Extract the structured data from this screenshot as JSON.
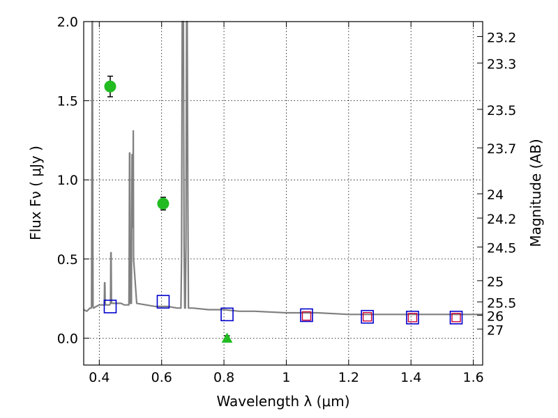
{
  "chart_data": {
    "type": "scatter",
    "title": "",
    "xlabel": "Wavelength  λ (μm)",
    "ylabel": "Flux  Fν  ( μJy )",
    "y2label": "Magnitude (AB)",
    "xlim": [
      0.35,
      1.63
    ],
    "ylim": [
      -0.17,
      2.0
    ],
    "grid": true,
    "x_ticks": [
      0.4,
      0.6,
      0.8,
      1.0,
      1.2,
      1.4,
      1.6
    ],
    "x_tick_labels": [
      "0.4",
      "0.6",
      "0.8",
      "1",
      "1.2",
      "1.4",
      "1.6"
    ],
    "y_ticks": [
      0.0,
      0.5,
      1.0,
      1.5,
      2.0
    ],
    "y_tick_labels": [
      "0.0",
      "0.5",
      "1.0",
      "1.5",
      "2.0"
    ],
    "y2_ticks": [
      23.2,
      23.3,
      23.5,
      23.7,
      24,
      24.2,
      24.5,
      25,
      25.5,
      26,
      27
    ],
    "y2_tick_labels": [
      "23.2",
      "23.3",
      "23.5",
      "23.7",
      "24",
      "24.2",
      "24.5",
      "25",
      "25.5",
      "26",
      "27"
    ],
    "colors": {
      "spectrum": "#808080",
      "observed": "#22bb22",
      "model_blue": "#0000cc",
      "model_red": "#cc0033",
      "errorbar": "#000000"
    },
    "series": [
      {
        "kind": "spectrum",
        "x": [
          0.35,
          0.36,
          0.37,
          0.375,
          0.376,
          0.377,
          0.378,
          0.379,
          0.38,
          0.382,
          0.39,
          0.4,
          0.41,
          0.416,
          0.417,
          0.418,
          0.419,
          0.42,
          0.43,
          0.433,
          0.436,
          0.437,
          0.438,
          0.439,
          0.44,
          0.45,
          0.46,
          0.47,
          0.48,
          0.49,
          0.495,
          0.496,
          0.497,
          0.498,
          0.499,
          0.5,
          0.503,
          0.504,
          0.505,
          0.506,
          0.507,
          0.508,
          0.509,
          0.51,
          0.52,
          0.55,
          0.58,
          0.62,
          0.65,
          0.66,
          0.662,
          0.664,
          0.666,
          0.668,
          0.67,
          0.672,
          0.674,
          0.676,
          0.678,
          0.68,
          0.682,
          0.684,
          0.686,
          0.688,
          0.69,
          0.7,
          0.75,
          0.8,
          0.85,
          0.9,
          1.0,
          1.1,
          1.2,
          1.3,
          1.4,
          1.5,
          1.6,
          1.63
        ],
        "y": [
          0.18,
          0.17,
          0.19,
          0.19,
          0.8,
          2.0,
          2.0,
          0.8,
          0.2,
          0.19,
          0.2,
          0.21,
          0.21,
          0.21,
          0.35,
          0.35,
          0.22,
          0.21,
          0.21,
          0.21,
          0.22,
          0.54,
          0.54,
          0.23,
          0.22,
          0.22,
          0.22,
          0.22,
          0.21,
          0.21,
          0.21,
          0.5,
          1.17,
          1.17,
          0.5,
          0.22,
          0.22,
          0.7,
          1.16,
          1.16,
          0.7,
          0.8,
          1.31,
          0.5,
          0.22,
          0.21,
          0.2,
          0.2,
          0.19,
          0.19,
          0.19,
          0.5,
          2.0,
          2.0,
          2.0,
          0.6,
          0.19,
          0.19,
          0.6,
          2.0,
          2.0,
          0.9,
          0.19,
          0.19,
          0.19,
          0.19,
          0.18,
          0.18,
          0.17,
          0.17,
          0.16,
          0.16,
          0.15,
          0.15,
          0.15,
          0.15,
          0.15,
          0.15
        ]
      },
      {
        "kind": "observed",
        "x": [
          0.435,
          0.605,
          0.81
        ],
        "y": [
          1.59,
          0.85,
          0.0
        ],
        "yerr": [
          0.065,
          0.04,
          0.015
        ],
        "markers": [
          "circle",
          "circle",
          "triangle"
        ]
      },
      {
        "kind": "model_blue",
        "x": [
          0.435,
          0.605,
          0.81,
          1.065,
          1.26,
          1.405,
          1.545
        ],
        "y": [
          0.2,
          0.23,
          0.15,
          0.145,
          0.135,
          0.13,
          0.13
        ]
      },
      {
        "kind": "model_red",
        "x": [
          1.065,
          1.26,
          1.405,
          1.545
        ],
        "y": [
          0.14,
          0.135,
          0.13,
          0.13
        ]
      }
    ]
  }
}
